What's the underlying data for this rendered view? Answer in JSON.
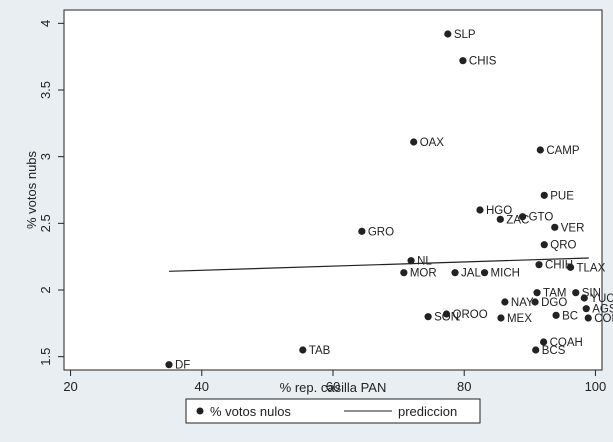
{
  "chart_data": {
    "type": "scatter",
    "xlabel": "% rep. casilla PAN",
    "ylabel": "% votos nubs",
    "xlim": [
      19,
      101
    ],
    "ylim": [
      1.4,
      4.1
    ],
    "xticks": [
      20,
      40,
      60,
      80,
      100
    ],
    "yticks": [
      1.5,
      2,
      2.5,
      3,
      3.5,
      4
    ],
    "grid": false,
    "legend_position": "bottom",
    "series": [
      {
        "name": "% votos nulos",
        "kind": "scatter",
        "color": "#222222",
        "points": [
          {
            "label": "SLP",
            "x": 77.5,
            "y": 3.92
          },
          {
            "label": "CHIS",
            "x": 79.8,
            "y": 3.72
          },
          {
            "label": "OAX",
            "x": 72.3,
            "y": 3.11
          },
          {
            "label": "CAMP",
            "x": 91.6,
            "y": 3.05
          },
          {
            "label": "PUE",
            "x": 92.2,
            "y": 2.71
          },
          {
            "label": "HGO",
            "x": 82.4,
            "y": 2.6
          },
          {
            "label": "GTO",
            "x": 88.9,
            "y": 2.55
          },
          {
            "label": "ZAC",
            "x": 85.5,
            "y": 2.53
          },
          {
            "label": "VER",
            "x": 93.8,
            "y": 2.47
          },
          {
            "label": "GRO",
            "x": 64.4,
            "y": 2.44
          },
          {
            "label": "QRO",
            "x": 92.2,
            "y": 2.34
          },
          {
            "label": "NL",
            "x": 71.9,
            "y": 2.22
          },
          {
            "label": "CHIH",
            "x": 91.4,
            "y": 2.19
          },
          {
            "label": "TLAX",
            "x": 96.2,
            "y": 2.17
          },
          {
            "label": "MOR",
            "x": 70.8,
            "y": 2.13
          },
          {
            "label": "JAL",
            "x": 78.6,
            "y": 2.13
          },
          {
            "label": "MICH",
            "x": 83.1,
            "y": 2.13
          },
          {
            "label": "TAM",
            "x": 91.1,
            "y": 1.98
          },
          {
            "label": "SIN",
            "x": 97.0,
            "y": 1.98
          },
          {
            "label": "YUC",
            "x": 98.3,
            "y": 1.94
          },
          {
            "label": "NAY",
            "x": 86.2,
            "y": 1.91
          },
          {
            "label": "DGO",
            "x": 90.8,
            "y": 1.91
          },
          {
            "label": "AGS",
            "x": 98.6,
            "y": 1.86
          },
          {
            "label": "QROO",
            "x": 77.3,
            "y": 1.82
          },
          {
            "label": "BC",
            "x": 94.0,
            "y": 1.81
          },
          {
            "label": "SON",
            "x": 74.5,
            "y": 1.8
          },
          {
            "label": "MEX",
            "x": 85.6,
            "y": 1.79
          },
          {
            "label": "COL",
            "x": 98.9,
            "y": 1.79
          },
          {
            "label": "COAH",
            "x": 92.1,
            "y": 1.61
          },
          {
            "label": "TAB",
            "x": 55.4,
            "y": 1.55
          },
          {
            "label": "BCS",
            "x": 90.9,
            "y": 1.55
          },
          {
            "label": "DF",
            "x": 35.0,
            "y": 1.44
          }
        ]
      },
      {
        "name": "prediccion",
        "kind": "line",
        "color": "#222222",
        "x": [
          35,
          99
        ],
        "y": [
          2.14,
          2.24
        ]
      }
    ]
  }
}
